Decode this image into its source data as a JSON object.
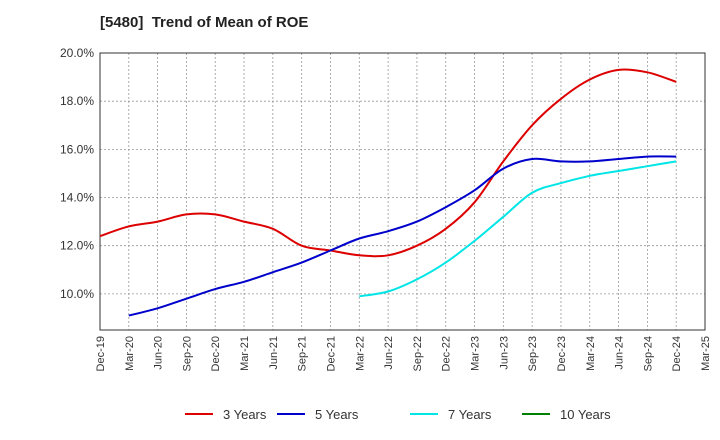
{
  "chart_data": {
    "type": "line",
    "title": "[5480]  Trend of Mean of ROE",
    "xlabel": "",
    "ylabel": "",
    "x_categories": [
      "Dec-19",
      "Mar-20",
      "Jun-20",
      "Sep-20",
      "Dec-20",
      "Mar-21",
      "Jun-21",
      "Sep-21",
      "Dec-21",
      "Mar-22",
      "Jun-22",
      "Sep-22",
      "Dec-22",
      "Mar-23",
      "Jun-23",
      "Sep-23",
      "Dec-23",
      "Mar-24",
      "Jun-24",
      "Sep-24",
      "Dec-24",
      "Mar-25"
    ],
    "yticks": [
      10.0,
      12.0,
      14.0,
      16.0,
      18.0,
      20.0
    ],
    "ytick_labels": [
      "10.0%",
      "12.0%",
      "14.0%",
      "16.0%",
      "18.0%",
      "20.0%"
    ],
    "ylim": [
      8.5,
      20.0
    ],
    "grid": true,
    "legend_position": "bottom",
    "series": [
      {
        "name": "3 Years",
        "color": "#dd0000",
        "values": [
          12.4,
          12.8,
          13.0,
          13.3,
          13.3,
          13.0,
          12.7,
          12.0,
          11.8,
          11.6,
          11.6,
          12.0,
          12.7,
          13.8,
          15.5,
          17.0,
          18.1,
          18.9,
          19.3,
          19.2,
          18.8,
          null
        ]
      },
      {
        "name": "5 Years",
        "color": "#0000cc",
        "values": [
          null,
          9.1,
          9.4,
          9.8,
          10.2,
          10.5,
          10.9,
          11.3,
          11.8,
          12.3,
          12.6,
          13.0,
          13.6,
          14.3,
          15.2,
          15.6,
          15.5,
          15.5,
          15.6,
          15.7,
          15.7,
          null
        ]
      },
      {
        "name": "7 Years",
        "color": "#00e5e5",
        "values": [
          null,
          null,
          null,
          null,
          null,
          null,
          null,
          null,
          null,
          9.9,
          10.1,
          10.6,
          11.3,
          12.2,
          13.2,
          14.2,
          14.6,
          14.9,
          15.1,
          15.3,
          15.5,
          null
        ]
      },
      {
        "name": "10 Years",
        "color": "#008000",
        "values": [
          null,
          null,
          null,
          null,
          null,
          null,
          null,
          null,
          null,
          null,
          null,
          null,
          null,
          null,
          null,
          null,
          null,
          null,
          null,
          null,
          null,
          null
        ]
      }
    ]
  }
}
